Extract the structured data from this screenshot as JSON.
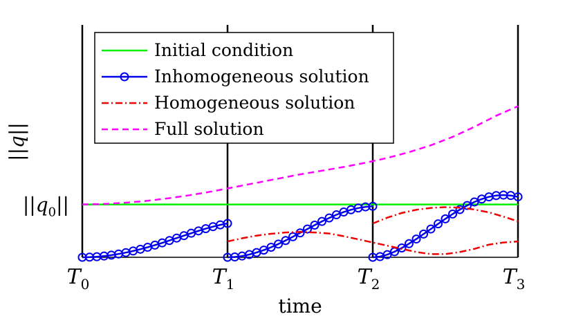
{
  "chart_data": {
    "type": "line",
    "xlabel": "time",
    "ylabel": "||q||",
    "x_ticks": [
      {
        "base": "T",
        "sub": "0",
        "x": 0
      },
      {
        "base": "T",
        "sub": "1",
        "x": 1
      },
      {
        "base": "T",
        "sub": "2",
        "x": 2
      },
      {
        "base": "T",
        "sub": "3",
        "x": 3
      }
    ],
    "y_tick": {
      "label": "||q0||",
      "value": 1.0
    },
    "xlim": [
      0,
      3
    ],
    "ylim": [
      0,
      4.4
    ],
    "grid": false,
    "vertical_lines_at": [
      0,
      1,
      2,
      3
    ],
    "legend_position": "top-left",
    "series": [
      {
        "name": "Initial condition",
        "color": "#00ee00",
        "style": "solid",
        "segments": [
          {
            "x": [
              0,
              3
            ],
            "y": [
              1.0,
              1.0
            ]
          }
        ]
      },
      {
        "name": "Inhomogeneous solution",
        "color": "#0000ee",
        "style": "solid-circle",
        "segments": [
          {
            "x": [
              0,
              0.05,
              0.1,
              0.15,
              0.2,
              0.25,
              0.3,
              0.35,
              0.4,
              0.45,
              0.5,
              0.55,
              0.6,
              0.65,
              0.7,
              0.75,
              0.8,
              0.85,
              0.9,
              0.95,
              1.0
            ],
            "y": [
              0,
              0.003,
              0.011,
              0.024,
              0.041,
              0.063,
              0.089,
              0.119,
              0.153,
              0.19,
              0.23,
              0.273,
              0.318,
              0.364,
              0.41,
              0.456,
              0.5,
              0.542,
              0.58,
              0.614,
              0.642
            ]
          },
          {
            "x": [
              1.0,
              1.05,
              1.1,
              1.15,
              1.2,
              1.25,
              1.3,
              1.35,
              1.4,
              1.45,
              1.5,
              1.55,
              1.6,
              1.65,
              1.7,
              1.75,
              1.8,
              1.85,
              1.9,
              1.95,
              2.0
            ],
            "y": [
              0,
              0.006,
              0.024,
              0.052,
              0.09,
              0.136,
              0.19,
              0.251,
              0.318,
              0.389,
              0.462,
              0.536,
              0.609,
              0.679,
              0.745,
              0.805,
              0.857,
              0.9,
              0.933,
              0.955,
              0.965
            ]
          },
          {
            "x": [
              2.0,
              2.05,
              2.1,
              2.15,
              2.2,
              2.25,
              2.3,
              2.35,
              2.4,
              2.45,
              2.5,
              2.55,
              2.6,
              2.65,
              2.7,
              2.75,
              2.8,
              2.85,
              2.9,
              2.95,
              3.0
            ],
            "y": [
              0,
              0.013,
              0.05,
              0.106,
              0.177,
              0.258,
              0.346,
              0.44,
              0.536,
              0.633,
              0.728,
              0.819,
              0.904,
              0.981,
              1.048,
              1.103,
              1.144,
              1.169,
              1.178,
              1.17,
              1.145
            ]
          }
        ]
      },
      {
        "name": "Homogeneous solution",
        "color": "#ee0000",
        "style": "dashdot",
        "segments": [
          {
            "x": [
              1.0,
              1.1,
              1.2,
              1.3,
              1.4,
              1.5,
              1.6,
              1.7,
              1.8,
              1.9,
              2.0,
              2.1,
              2.2,
              2.3,
              2.4,
              2.5,
              2.6,
              2.7,
              2.8,
              2.9,
              3.0
            ],
            "y": [
              0.3,
              0.36,
              0.41,
              0.445,
              0.47,
              0.48,
              0.47,
              0.45,
              0.4,
              0.34,
              0.28,
              0.22,
              0.16,
              0.1,
              0.06,
              0.06,
              0.1,
              0.16,
              0.24,
              0.28,
              0.3
            ]
          },
          {
            "x": [
              2.0,
              2.1,
              2.2,
              2.3,
              2.4,
              2.5,
              2.6,
              2.7,
              2.8,
              2.9,
              3.0
            ],
            "y": [
              0.64,
              0.75,
              0.84,
              0.9,
              0.935,
              0.95,
              0.94,
              0.905,
              0.85,
              0.77,
              0.68
            ]
          }
        ]
      },
      {
        "name": "Full solution",
        "color": "#ff00ff",
        "style": "dashed",
        "segments": [
          {
            "x": [
              0,
              0.15,
              0.3,
              0.45,
              0.6,
              0.75,
              0.9,
              1.05,
              1.2,
              1.35,
              1.5,
              1.65,
              1.8,
              1.95,
              2.1,
              2.25,
              2.4,
              2.55,
              2.7,
              2.85,
              3.0
            ],
            "y": [
              1.0,
              1.01,
              1.035,
              1.07,
              1.12,
              1.18,
              1.25,
              1.33,
              1.41,
              1.49,
              1.57,
              1.64,
              1.71,
              1.79,
              1.88,
              1.99,
              2.12,
              2.28,
              2.47,
              2.68,
              2.86
            ]
          }
        ]
      }
    ]
  }
}
